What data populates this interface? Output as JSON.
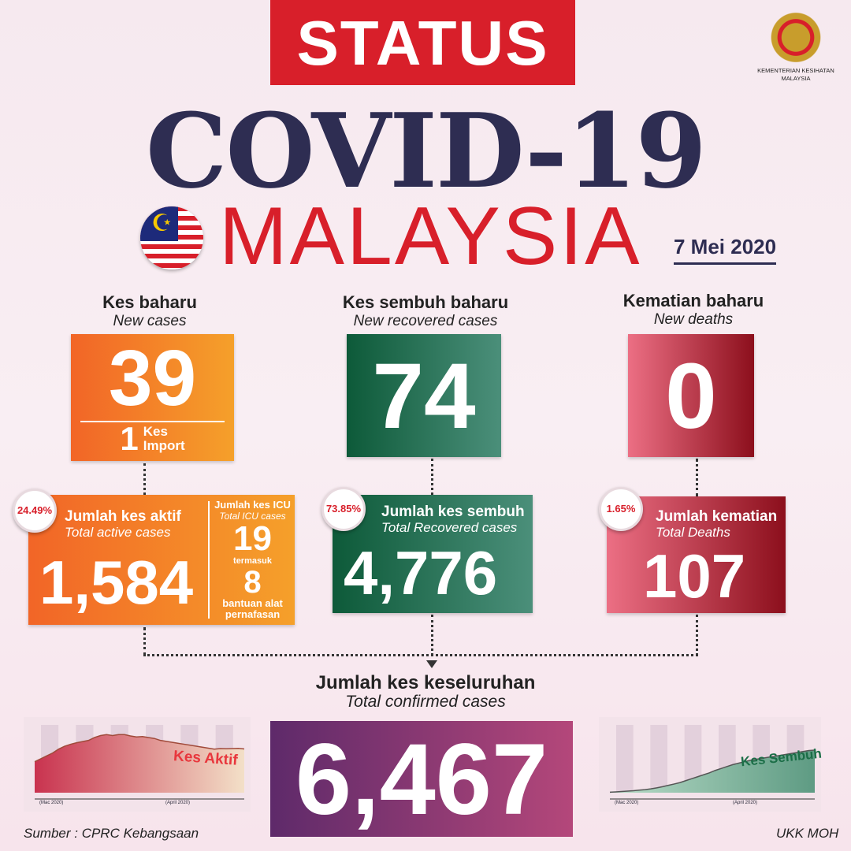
{
  "header": {
    "status": "STATUS",
    "title": "COVID-19",
    "country": "MALAYSIA",
    "date": "7 Mei 2020",
    "ministry": "KEMENTERIAN KESIHATAN MALAYSIA"
  },
  "new_cases": {
    "label": "Kes baharu",
    "label_en": "New cases",
    "value": "39",
    "import_value": "1",
    "import_label1": "Kes",
    "import_label2": "Import",
    "color": "#f26527"
  },
  "new_recovered": {
    "label": "Kes sembuh baharu",
    "label_en": "New recovered cases",
    "value": "74",
    "color": "#0d5a39"
  },
  "new_deaths": {
    "label": "Kematian baharu",
    "label_en": "New deaths",
    "value": "0",
    "color": "#b52233"
  },
  "active": {
    "pct": "24.49%",
    "label": "Jumlah kes aktif",
    "label_en": "Total active cases",
    "value": "1,584"
  },
  "icu": {
    "label": "Jumlah kes ICU",
    "label_en": "Total ICU cases",
    "value": "19",
    "including": "termasuk",
    "ventilator_value": "8",
    "ventilator_label": "bantuan alat pernafasan"
  },
  "recovered": {
    "pct": "73.85%",
    "label": "Jumlah kes sembuh",
    "label_en": "Total Recovered cases",
    "value": "4,776"
  },
  "deaths": {
    "pct": "1.65%",
    "label": "Jumlah kematian",
    "label_en": "Total Deaths",
    "value": "107"
  },
  "total": {
    "label": "Jumlah kes keseluruhan",
    "label_en": "Total confirmed cases",
    "value": "6,467"
  },
  "mini_active": {
    "title": "Kes Aktif",
    "months": [
      "(Mac 2020)",
      "(April 2020)"
    ],
    "values": [
      1600,
      1750,
      1900,
      2050,
      2250,
      2400,
      2500,
      2580,
      2640,
      2700,
      2850,
      2950,
      3000,
      2950,
      3000,
      3000,
      2930,
      2880,
      2900,
      2850,
      2800,
      2700,
      2650,
      2600,
      2550,
      2500,
      2450,
      2400,
      2350,
      2300,
      2250,
      2280,
      2270,
      2280,
      2290,
      2260
    ]
  },
  "mini_recovered": {
    "title": "Kes Sembuh",
    "months": [
      "(Mac 2020)",
      "(April 2020)"
    ],
    "values": [
      50,
      80,
      120,
      160,
      200,
      260,
      320,
      400,
      500,
      620,
      760,
      900,
      1050,
      1250,
      1450,
      1650,
      1850,
      2050,
      2300,
      2500,
      2700,
      2900,
      3050,
      3200,
      3350,
      3450,
      3550,
      3650,
      3750,
      3850,
      3950,
      4050,
      4150,
      4250,
      4350,
      4400
    ]
  },
  "footer": {
    "source": "Sumber : CPRC Kebangsaan",
    "credit": "UKK MOH"
  }
}
